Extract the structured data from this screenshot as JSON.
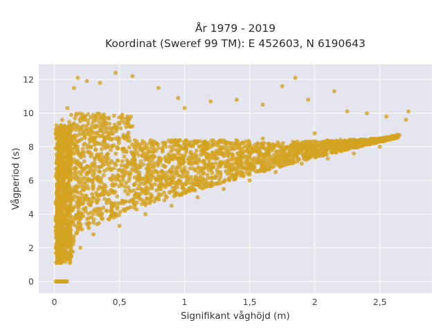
{
  "chart_data": {
    "type": "scatter",
    "title": "År 1979 - 2019",
    "subtitle": "Koordinat (Sweref 99 TM): E 452603, N 6190643",
    "xlabel": "Signifikant våghöjd (m)",
    "ylabel": "Vågperiod (s)",
    "xlim": [
      -0.12,
      2.9
    ],
    "ylim": [
      -0.7,
      12.9
    ],
    "x_ticks": [
      0,
      0.5,
      1,
      1.5,
      2,
      2.5
    ],
    "x_tick_labels": [
      "0",
      "0,5",
      "1",
      "1,5",
      "2",
      "2,5"
    ],
    "y_ticks": [
      0,
      2,
      4,
      6,
      8,
      10,
      12
    ],
    "y_tick_labels": [
      "0",
      "2",
      "4",
      "6",
      "8",
      "10",
      "12"
    ],
    "grid": true,
    "legend": "none",
    "marker_color": "#D4A320",
    "background_color": "#E5E5EF",
    "points": [
      [
        0.02,
        0.0
      ],
      [
        0.05,
        0.0
      ],
      [
        0.08,
        0.0
      ],
      [
        0.05,
        1.1
      ],
      [
        0.12,
        1.1
      ],
      [
        0.2,
        2.0
      ],
      [
        0.3,
        2.8
      ],
      [
        0.5,
        3.3
      ],
      [
        0.7,
        4.0
      ],
      [
        0.9,
        4.5
      ],
      [
        1.1,
        5.0
      ],
      [
        1.3,
        5.5
      ],
      [
        1.5,
        6.0
      ],
      [
        1.7,
        6.5
      ],
      [
        1.9,
        7.0
      ],
      [
        2.1,
        7.3
      ],
      [
        2.3,
        7.6
      ],
      [
        2.5,
        8.0
      ],
      [
        2.65,
        8.7
      ],
      [
        2.72,
        10.1
      ],
      [
        0.04,
        7.8
      ],
      [
        0.06,
        9.6
      ],
      [
        0.1,
        10.3
      ],
      [
        0.15,
        11.5
      ],
      [
        0.18,
        12.1
      ],
      [
        0.25,
        11.9
      ],
      [
        0.35,
        11.8
      ],
      [
        0.47,
        12.4
      ],
      [
        0.6,
        12.2
      ],
      [
        0.8,
        11.5
      ],
      [
        0.95,
        10.9
      ],
      [
        1.0,
        10.3
      ],
      [
        1.2,
        10.7
      ],
      [
        1.4,
        10.8
      ],
      [
        1.6,
        10.5
      ],
      [
        1.75,
        11.6
      ],
      [
        1.85,
        12.1
      ],
      [
        1.95,
        10.8
      ],
      [
        2.15,
        11.3
      ],
      [
        2.25,
        10.1
      ],
      [
        2.4,
        10.0
      ],
      [
        2.55,
        9.8
      ],
      [
        2.7,
        9.6
      ],
      [
        0.3,
        5.0
      ],
      [
        0.5,
        6.0
      ],
      [
        0.8,
        7.0
      ],
      [
        1.2,
        8.0
      ],
      [
        1.6,
        8.5
      ],
      [
        2.0,
        8.8
      ]
    ]
  }
}
